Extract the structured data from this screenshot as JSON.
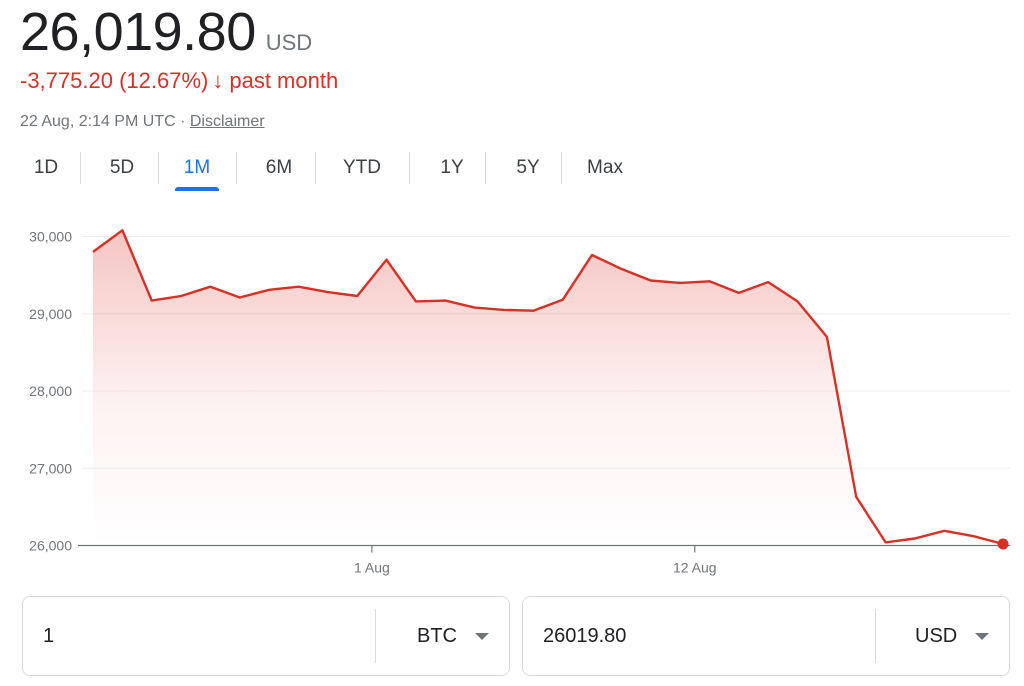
{
  "header": {
    "price": "26,019.80",
    "currency": "USD",
    "change": "-3,775.20 (12.67%)",
    "change_arrow": "↓",
    "change_period": "past month",
    "timestamp": "22 Aug, 2:14 PM UTC",
    "separator": "·",
    "disclaimer": "Disclaimer"
  },
  "tabs": [
    {
      "label": "1D",
      "active": false
    },
    {
      "label": "5D",
      "active": false
    },
    {
      "label": "1M",
      "active": true
    },
    {
      "label": "6M",
      "active": false
    },
    {
      "label": "YTD",
      "active": false
    },
    {
      "label": "1Y",
      "active": false
    },
    {
      "label": "5Y",
      "active": false
    },
    {
      "label": "Max",
      "active": false
    }
  ],
  "chart_data": {
    "type": "area",
    "y_ticks": [
      30000,
      29000,
      28000,
      27000,
      26000
    ],
    "y_tick_labels": [
      "30,000",
      "29,000",
      "28,000",
      "27,000",
      "26,000"
    ],
    "ylim": [
      26000,
      30000
    ],
    "x_tick_labels": [
      "1 Aug",
      "12 Aug"
    ],
    "x_tick_positions": [
      9.5,
      20.5
    ],
    "values": [
      29800,
      30080,
      29170,
      29230,
      29350,
      29210,
      29310,
      29350,
      29280,
      29230,
      29700,
      29160,
      29170,
      29080,
      29050,
      29040,
      29180,
      29760,
      29580,
      29430,
      29400,
      29420,
      29270,
      29410,
      29160,
      28700,
      26630,
      26040,
      26090,
      26190,
      26120,
      26019.8
    ],
    "color": "#d93025",
    "grid": true,
    "end_marker": true
  },
  "converter": {
    "left_amount": "1",
    "left_unit": "BTC",
    "right_amount": "26019.80",
    "right_unit": "USD"
  }
}
